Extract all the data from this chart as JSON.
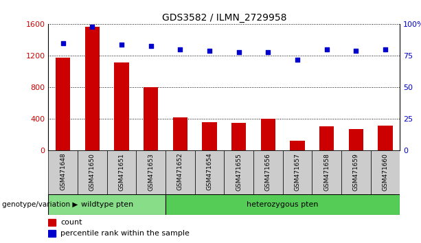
{
  "title": "GDS3582 / ILMN_2729958",
  "samples": [
    "GSM471648",
    "GSM471650",
    "GSM471651",
    "GSM471653",
    "GSM471652",
    "GSM471654",
    "GSM471655",
    "GSM471656",
    "GSM471657",
    "GSM471658",
    "GSM471659",
    "GSM471660"
  ],
  "counts": [
    1180,
    1570,
    1120,
    800,
    420,
    360,
    350,
    400,
    130,
    310,
    270,
    315
  ],
  "percentiles": [
    85,
    98,
    84,
    83,
    80,
    79,
    78,
    78,
    72,
    80,
    79,
    80
  ],
  "bar_color": "#cc0000",
  "dot_color": "#0000cc",
  "ylim_left": [
    0,
    1600
  ],
  "ylim_right": [
    0,
    100
  ],
  "yticks_left": [
    0,
    400,
    800,
    1200,
    1600
  ],
  "yticks_right": [
    0,
    25,
    50,
    75,
    100
  ],
  "ytick_labels_right": [
    "0",
    "25",
    "50",
    "75",
    "100%"
  ],
  "groups": [
    {
      "label": "wildtype pten",
      "start": 0,
      "end": 4,
      "color": "#88dd88"
    },
    {
      "label": "heterozygous pten",
      "start": 4,
      "end": 12,
      "color": "#55cc55"
    }
  ],
  "group_row_label": "genotype/variation",
  "legend_count_label": "count",
  "legend_percentile_label": "percentile rank within the sample",
  "tick_label_color_left": "#cc0000",
  "tick_label_color_right": "#0000cc",
  "background_color": "#ffffff",
  "xtick_bg_color": "#cccccc",
  "grid_color": "#000000",
  "title_fontsize": 10
}
